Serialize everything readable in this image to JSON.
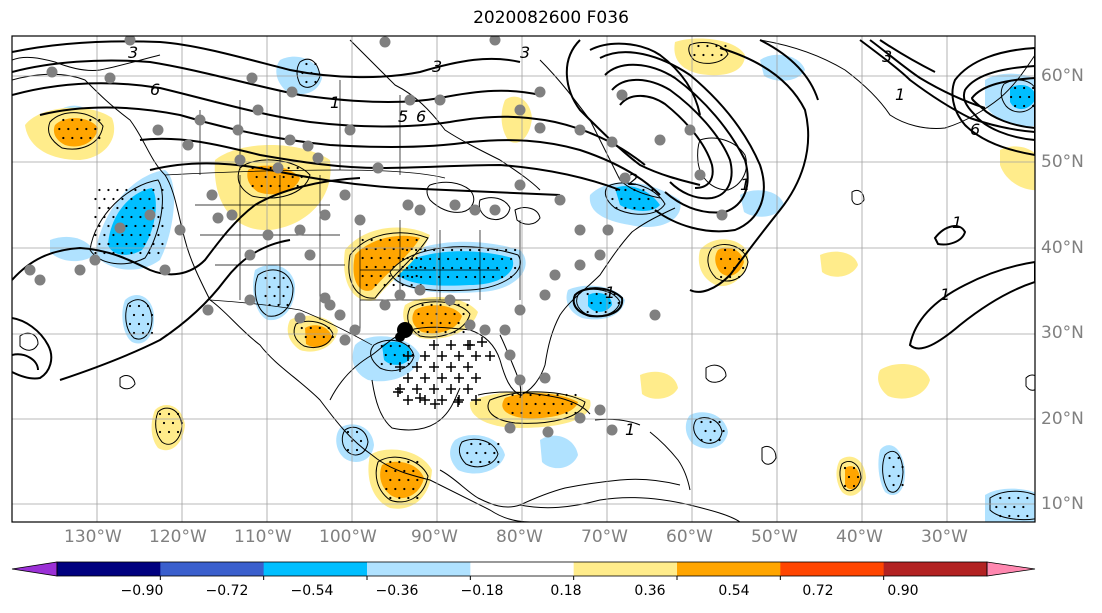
{
  "title": "2020082600 F036",
  "longitude_labels": [
    "130°W",
    "120°W",
    "110°W",
    "100°W",
    "90°W",
    "80°W",
    "70°W",
    "60°W",
    "50°W",
    "40°W",
    "30°W"
  ],
  "latitude_labels": [
    "60°N",
    "50°N",
    "40°N",
    "30°N",
    "20°N",
    "10°N"
  ],
  "colorbar": {
    "tick_labels": [
      "−0.90",
      "−0.72",
      "−0.54",
      "−0.36",
      "−0.18",
      "0.18",
      "0.36",
      "0.54",
      "0.72",
      "0.90"
    ],
    "colors": [
      "#9b30d6",
      "#00007f",
      "#3a5fcd",
      "#00bfff",
      "#b0e2ff",
      "#ffffff",
      "#ffec8b",
      "#ffa500",
      "#ff4500",
      "#b22222",
      "#ff88b0"
    ]
  },
  "fill_colors": {
    "pos_light": "#ffec8b",
    "pos_mid": "#ffa500",
    "neg_light": "#b0e2ff",
    "neg_mid": "#00bfff"
  },
  "contour_labels": [
    "3",
    "6",
    "3",
    "1",
    "5",
    "6",
    "3",
    "1",
    "1",
    "1",
    "1",
    "6",
    "1",
    "2",
    "1",
    "3"
  ],
  "marker_colors": {
    "station": "#808080",
    "storm": "#000000",
    "plus": "#000000"
  }
}
